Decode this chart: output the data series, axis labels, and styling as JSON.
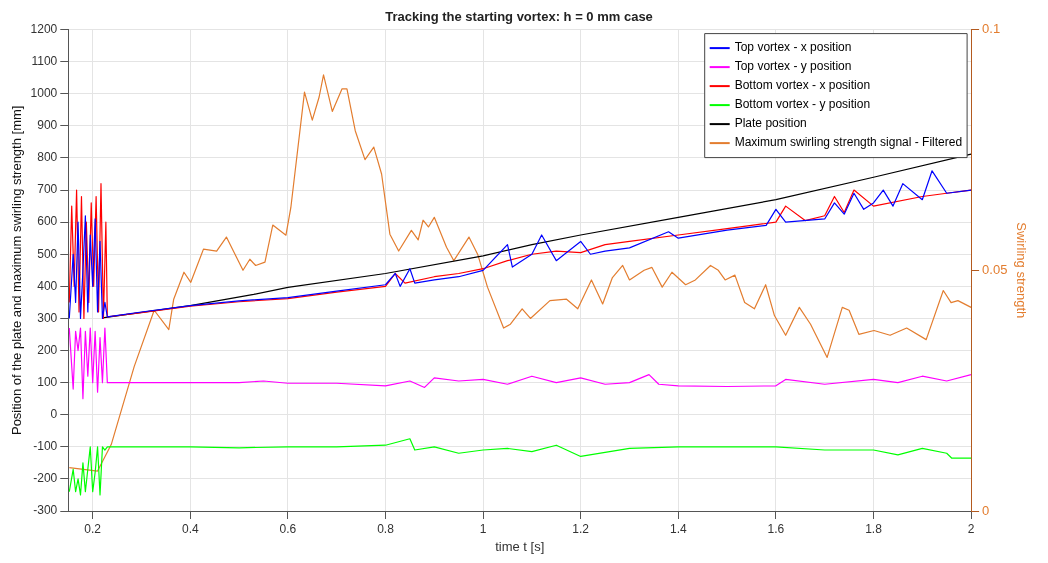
{
  "chart_data": {
    "type": "line",
    "title": "Tracking the starting vortex: h = 0 mm case",
    "xlabel": "time t [s]",
    "ylabel": "Position of the plate and maximum swirling strength [mm]",
    "y2label": "Swirling strength",
    "xlim": [
      0.15,
      2
    ],
    "xticks": [
      0.2,
      0.4,
      0.6,
      0.8,
      1,
      1.2,
      1.4,
      1.6,
      1.8,
      2
    ],
    "ylim": [
      -300,
      1200
    ],
    "yticks": [
      -300,
      -200,
      -100,
      0,
      100,
      200,
      300,
      400,
      500,
      600,
      700,
      800,
      900,
      1000,
      1100,
      1200
    ],
    "y2lim": [
      0,
      0.1
    ],
    "y2ticks": [
      0,
      0.05,
      0.1
    ],
    "grid": true,
    "legend": "top right",
    "marker": "none",
    "line_style": "solid",
    "series": [
      {
        "name": "Top vortex - x position",
        "color": "#0000ff",
        "x": [
          0.152,
          0.16,
          0.165,
          0.17,
          0.175,
          0.18,
          0.185,
          0.19,
          0.195,
          0.2,
          0.205,
          0.21,
          0.215,
          0.22,
          0.225,
          0.23,
          0.3,
          0.4,
          0.5,
          0.6,
          0.7,
          0.8,
          0.82,
          0.83,
          0.85,
          0.86,
          0.9,
          0.95,
          1.0,
          1.05,
          1.06,
          1.1,
          1.12,
          1.15,
          1.2,
          1.22,
          1.25,
          1.3,
          1.38,
          1.4,
          1.5,
          1.58,
          1.6,
          1.62,
          1.7,
          1.72,
          1.74,
          1.76,
          1.78,
          1.8,
          1.82,
          1.84,
          1.86,
          1.9,
          1.92,
          1.95,
          2.0
        ],
        "values": [
          300,
          500,
          350,
          600,
          300,
          450,
          620,
          320,
          560,
          400,
          610,
          320,
          540,
          300,
          350,
          305,
          320,
          340,
          355,
          365,
          385,
          405,
          440,
          400,
          455,
          410,
          420,
          430,
          450,
          530,
          460,
          500,
          560,
          480,
          540,
          500,
          510,
          520,
          570,
          550,
          575,
          590,
          640,
          600,
          610,
          660,
          625,
          690,
          640,
          660,
          700,
          650,
          720,
          670,
          760,
          690,
          700
        ]
      },
      {
        "name": "Top vortex - y position",
        "color": "#ff00ff",
        "x": [
          0.152,
          0.16,
          0.165,
          0.17,
          0.175,
          0.18,
          0.185,
          0.19,
          0.195,
          0.2,
          0.205,
          0.21,
          0.215,
          0.22,
          0.225,
          0.23,
          0.3,
          0.4,
          0.5,
          0.55,
          0.6,
          0.7,
          0.8,
          0.85,
          0.88,
          0.9,
          0.95,
          1.0,
          1.05,
          1.1,
          1.15,
          1.2,
          1.25,
          1.3,
          1.34,
          1.36,
          1.4,
          1.5,
          1.6,
          1.62,
          1.7,
          1.8,
          1.85,
          1.9,
          1.95,
          2.0
        ],
        "values": [
          270,
          80,
          260,
          200,
          270,
          50,
          260,
          120,
          270,
          100,
          260,
          70,
          240,
          100,
          270,
          100,
          100,
          100,
          100,
          105,
          98,
          98,
          90,
          105,
          85,
          115,
          105,
          110,
          95,
          120,
          100,
          115,
          95,
          100,
          125,
          95,
          90,
          88,
          90,
          110,
          95,
          110,
          100,
          120,
          105,
          125
        ]
      },
      {
        "name": "Bottom vortex - x position",
        "color": "#ff0000",
        "x": [
          0.152,
          0.157,
          0.162,
          0.167,
          0.172,
          0.177,
          0.182,
          0.187,
          0.192,
          0.197,
          0.202,
          0.207,
          0.212,
          0.217,
          0.222,
          0.227,
          0.23,
          0.3,
          0.4,
          0.5,
          0.6,
          0.7,
          0.8,
          0.82,
          0.84,
          0.9,
          0.95,
          1.0,
          1.05,
          1.1,
          1.15,
          1.2,
          1.25,
          1.3,
          1.4,
          1.5,
          1.55,
          1.6,
          1.62,
          1.66,
          1.7,
          1.72,
          1.74,
          1.76,
          1.8,
          1.9,
          1.95,
          2.0
        ],
        "values": [
          350,
          650,
          400,
          700,
          320,
          680,
          300,
          600,
          350,
          660,
          400,
          680,
          320,
          720,
          300,
          600,
          305,
          318,
          338,
          352,
          362,
          382,
          400,
          440,
          410,
          430,
          440,
          455,
          480,
          500,
          510,
          505,
          530,
          540,
          560,
          580,
          590,
          600,
          650,
          605,
          620,
          680,
          630,
          700,
          650,
          680,
          690,
          700
        ]
      },
      {
        "name": "Bottom vortex - y position",
        "color": "#00ff00",
        "x": [
          0.152,
          0.16,
          0.165,
          0.17,
          0.175,
          0.18,
          0.185,
          0.19,
          0.195,
          0.2,
          0.205,
          0.21,
          0.215,
          0.22,
          0.225,
          0.23,
          0.3,
          0.4,
          0.5,
          0.6,
          0.7,
          0.8,
          0.85,
          0.86,
          0.9,
          0.95,
          1.0,
          1.05,
          1.1,
          1.15,
          1.2,
          1.3,
          1.4,
          1.5,
          1.6,
          1.7,
          1.8,
          1.85,
          1.9,
          1.95,
          1.96,
          2.0
        ],
        "values": [
          -240,
          -170,
          -240,
          -200,
          -250,
          -150,
          -240,
          -170,
          -100,
          -240,
          -180,
          -100,
          -250,
          -100,
          -110,
          -100,
          -100,
          -100,
          -103,
          -100,
          -100,
          -95,
          -75,
          -110,
          -100,
          -120,
          -110,
          -105,
          -115,
          -95,
          -130,
          -105,
          -100,
          -100,
          -100,
          -110,
          -110,
          -125,
          -105,
          -120,
          -135,
          -135
        ]
      },
      {
        "name": "Plate position",
        "color": "#000000",
        "x": [
          0.22,
          0.33,
          0.4,
          0.53,
          0.6,
          0.8,
          1.0,
          1.1,
          1.2,
          1.4,
          1.6,
          1.8,
          2.0
        ],
        "values": [
          302,
          325,
          340,
          375,
          397,
          440,
          495,
          530,
          560,
          615,
          670,
          740,
          812
        ]
      },
      {
        "name": "Maximum swirling strength signal - Filtered",
        "color": "#e37d2f",
        "axis": "y2",
        "x": [
          0.152,
          0.21,
          0.238,
          0.285,
          0.326,
          0.356,
          0.366,
          0.387,
          0.401,
          0.427,
          0.454,
          0.474,
          0.508,
          0.522,
          0.534,
          0.553,
          0.569,
          0.596,
          0.606,
          0.634,
          0.65,
          0.664,
          0.673,
          0.691,
          0.711,
          0.721,
          0.738,
          0.758,
          0.776,
          0.792,
          0.809,
          0.827,
          0.853,
          0.867,
          0.877,
          0.888,
          0.9,
          0.925,
          0.94,
          0.971,
          0.989,
          1.009,
          1.042,
          1.056,
          1.08,
          1.097,
          1.137,
          1.171,
          1.194,
          1.222,
          1.245,
          1.265,
          1.286,
          1.3,
          1.33,
          1.346,
          1.367,
          1.387,
          1.415,
          1.435,
          1.466,
          1.482,
          1.496,
          1.516,
          1.536,
          1.556,
          1.579,
          1.597,
          1.62,
          1.648,
          1.671,
          1.705,
          1.736,
          1.75,
          1.77,
          1.801,
          1.834,
          1.868,
          1.908,
          1.943,
          1.959,
          1.973,
          2.0
        ],
        "values": [
          0.009,
          0.0083,
          0.0138,
          0.03,
          0.0417,
          0.0377,
          0.044,
          0.0496,
          0.0475,
          0.0544,
          0.054,
          0.0569,
          0.05,
          0.0523,
          0.051,
          0.0517,
          0.0594,
          0.0573,
          0.063,
          0.087,
          0.0812,
          0.086,
          0.0906,
          0.083,
          0.0877,
          0.0877,
          0.079,
          0.073,
          0.0756,
          0.07,
          0.0575,
          0.054,
          0.0583,
          0.0563,
          0.0604,
          0.059,
          0.061,
          0.0548,
          0.052,
          0.0569,
          0.0533,
          0.0465,
          0.038,
          0.0388,
          0.042,
          0.04,
          0.0437,
          0.044,
          0.042,
          0.048,
          0.043,
          0.0485,
          0.051,
          0.048,
          0.05,
          0.0506,
          0.0465,
          0.0496,
          0.047,
          0.048,
          0.051,
          0.05,
          0.048,
          0.049,
          0.0433,
          0.042,
          0.047,
          0.0406,
          0.0365,
          0.0423,
          0.0388,
          0.0319,
          0.0423,
          0.0417,
          0.0367,
          0.0375,
          0.0365,
          0.038,
          0.0356,
          0.0458,
          0.0433,
          0.0437,
          0.0423
        ]
      }
    ]
  }
}
